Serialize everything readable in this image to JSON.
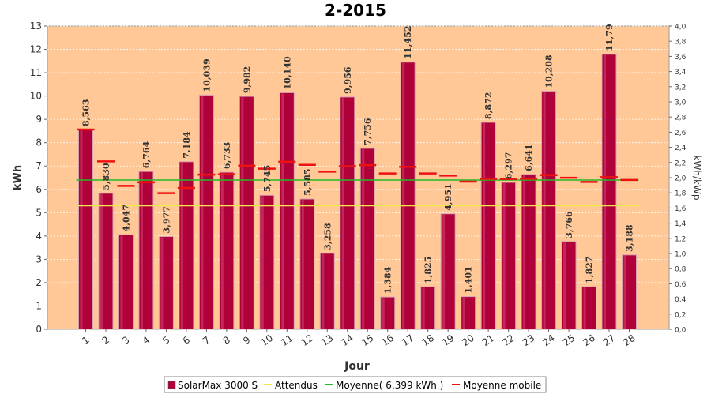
{
  "chart_data": {
    "type": "bar",
    "title": "2-2015",
    "xlabel": "Jour",
    "ylabel": "kWh",
    "y2label": "kWh/kWp",
    "ylim": [
      0,
      13
    ],
    "y2lim": [
      0,
      4.0
    ],
    "y_ticks": [
      "0",
      "1",
      "2",
      "3",
      "4",
      "5",
      "6",
      "7",
      "8",
      "9",
      "10",
      "11",
      "12",
      "13"
    ],
    "y2_ticks": [
      "0,0",
      "0,2",
      "0,4",
      "0,6",
      "0,8",
      "1,0",
      "1,2",
      "1,4",
      "1,6",
      "1,8",
      "2,0",
      "2,2",
      "2,4",
      "2,6",
      "2,8",
      "3,0",
      "3,2",
      "3,4",
      "3,6",
      "3,8",
      "4,0"
    ],
    "categories": [
      "1",
      "2",
      "3",
      "4",
      "5",
      "6",
      "7",
      "8",
      "9",
      "10",
      "11",
      "12",
      "13",
      "14",
      "15",
      "16",
      "17",
      "18",
      "19",
      "20",
      "21",
      "22",
      "23",
      "24",
      "25",
      "26",
      "27",
      "28"
    ],
    "series": [
      {
        "name": "SolarMax 3000 S",
        "values": [
          8.563,
          5.83,
          4.047,
          6.764,
          3.977,
          7.184,
          10.039,
          6.733,
          9.982,
          5.745,
          10.14,
          5.585,
          3.258,
          9.956,
          7.756,
          1.384,
          11.452,
          1.825,
          4.951,
          1.401,
          8.872,
          6.297,
          6.641,
          10.208,
          3.766,
          1.827,
          11.79,
          3.188
        ],
        "labels": [
          "8,563",
          "5,830",
          "4,047",
          "6,764",
          "3,977",
          "7,184",
          "10,039",
          "6,733",
          "9,982",
          "5,745",
          "10,140",
          "5,585",
          "3,258",
          "9,956",
          "7,756",
          "1,384",
          "11,452",
          "1,825",
          "4,951",
          "1,401",
          "8,872",
          "6,297",
          "6,641",
          "10,208",
          "3,766",
          "1,827",
          "11,79",
          "3,188"
        ]
      },
      {
        "name": "Attendus",
        "value": 5.3
      },
      {
        "name": "Moyenne( 6,399 kWh )",
        "value": 6.399
      },
      {
        "name": "Moyenne mobile",
        "values": [
          8.563,
          7.197,
          6.147,
          6.301,
          5.836,
          6.061,
          6.63,
          6.643,
          7.014,
          6.887,
          7.183,
          7.05,
          6.758,
          6.986,
          7.037,
          6.684,
          6.965,
          6.681,
          6.59,
          6.331,
          6.451,
          6.444,
          6.453,
          6.609,
          6.496,
          6.317,
          6.52,
          6.401
        ]
      }
    ],
    "legend_position": "bottom",
    "colors": {
      "bar": "#b0003a",
      "plot_background": "#ffc896",
      "attendus": "#f2e84a",
      "moyenne": "#22bb22",
      "moyenne_mobile": "#ee1111"
    }
  },
  "legend": [
    {
      "label": "SolarMax 3000 S",
      "color": "#b0003a",
      "kind": "box"
    },
    {
      "label": "Attendus",
      "color": "#f2e84a",
      "kind": "line"
    },
    {
      "label": "Moyenne( 6,399 kWh )",
      "color": "#22bb22",
      "kind": "line"
    },
    {
      "label": "Moyenne mobile",
      "color": "#ee1111",
      "kind": "line"
    }
  ]
}
